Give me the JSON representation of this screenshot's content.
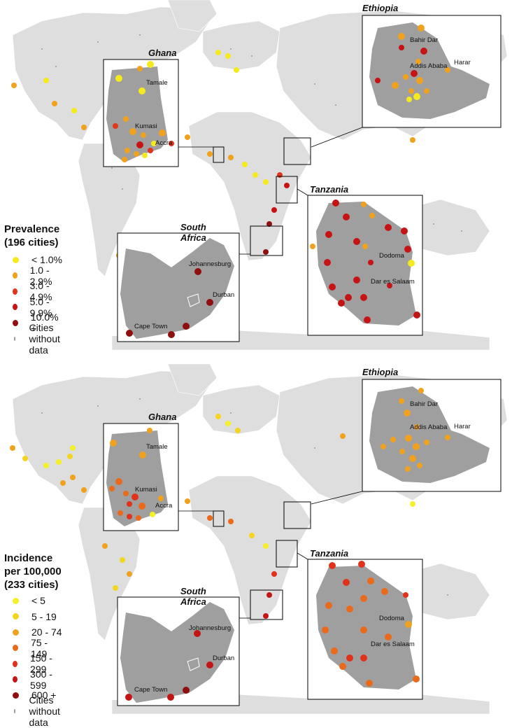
{
  "panels": [
    {
      "id": "prevalence",
      "legend": {
        "title_lines": [
          "Prevalence",
          "(196 cities)"
        ],
        "items": [
          {
            "label": "< 1.0%",
            "color": "#f5ea1e"
          },
          {
            "label": "1.0 - 2.9%",
            "color": "#f0a21e"
          },
          {
            "label": "3.0 - 4.9%",
            "color": "#e3341c"
          },
          {
            "label": "5.0 - 9.9%",
            "color": "#c61414"
          },
          {
            "label": "10.0% +",
            "color": "#8f0e0e"
          },
          {
            "label": "Cities without data",
            "color": "#9a9a9a",
            "small": true
          }
        ]
      }
    },
    {
      "id": "incidence",
      "legend": {
        "title_lines": [
          "Incidence",
          "per 100,000",
          "(233 cities)"
        ],
        "items": [
          {
            "label": "< 5",
            "color": "#f6f02a"
          },
          {
            "label": "5 - 19",
            "color": "#f3d521"
          },
          {
            "label": "20 - 74",
            "color": "#f0a21e"
          },
          {
            "label": "75 - 149",
            "color": "#ea6a1c"
          },
          {
            "label": "150 - 299",
            "color": "#e0321a"
          },
          {
            "label": "300 - 599",
            "color": "#c41414"
          },
          {
            "label": "600 +",
            "color": "#8f0e0e"
          },
          {
            "label": "Cities without data",
            "color": "#9a9a9a",
            "small": true
          }
        ]
      }
    }
  ],
  "insets": {
    "ghana": {
      "title": "Ghana",
      "cities": [
        "Tamale",
        "Kumasi",
        "Accra"
      ]
    },
    "ethiopia": {
      "title": "Ethiopia",
      "cities": [
        "Bahir Dar",
        "Addis Ababa",
        "Harar"
      ]
    },
    "tanzania": {
      "title": "Tanzania",
      "cities": [
        "Dodoma",
        "Dar es Salaam"
      ]
    },
    "south_africa": {
      "title": "South Africa",
      "cities": [
        "Johannesburg",
        "Durban",
        "Cape Town"
      ]
    }
  }
}
